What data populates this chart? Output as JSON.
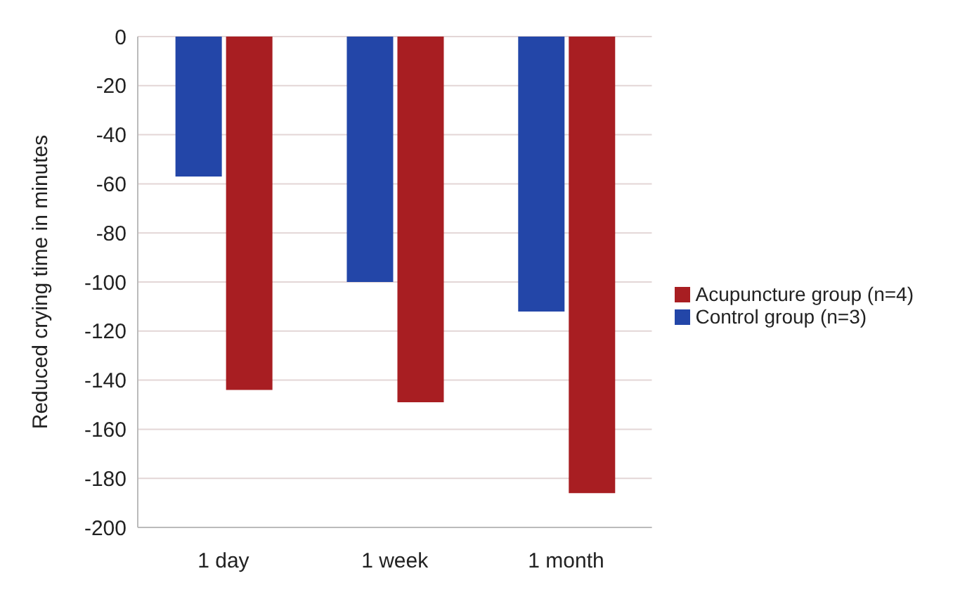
{
  "chart_data": {
    "type": "bar",
    "ylabel": "Reduced crying time in minutes",
    "categories": [
      "1 day",
      "1 week",
      "1 month"
    ],
    "series": [
      {
        "name": "Control group (n=3)",
        "color": "#2346a8",
        "values": [
          -57,
          -100,
          -112
        ]
      },
      {
        "name": "Acupuncture group (n=4)",
        "color": "#a81e22",
        "values": [
          -144,
          -149,
          -186
        ]
      }
    ],
    "ylim": [
      -200,
      0
    ],
    "yticks": [
      -200,
      -180,
      -160,
      -140,
      -120,
      -100,
      -80,
      -60,
      -40,
      -20,
      0
    ],
    "grid": "y",
    "legend": "right"
  }
}
